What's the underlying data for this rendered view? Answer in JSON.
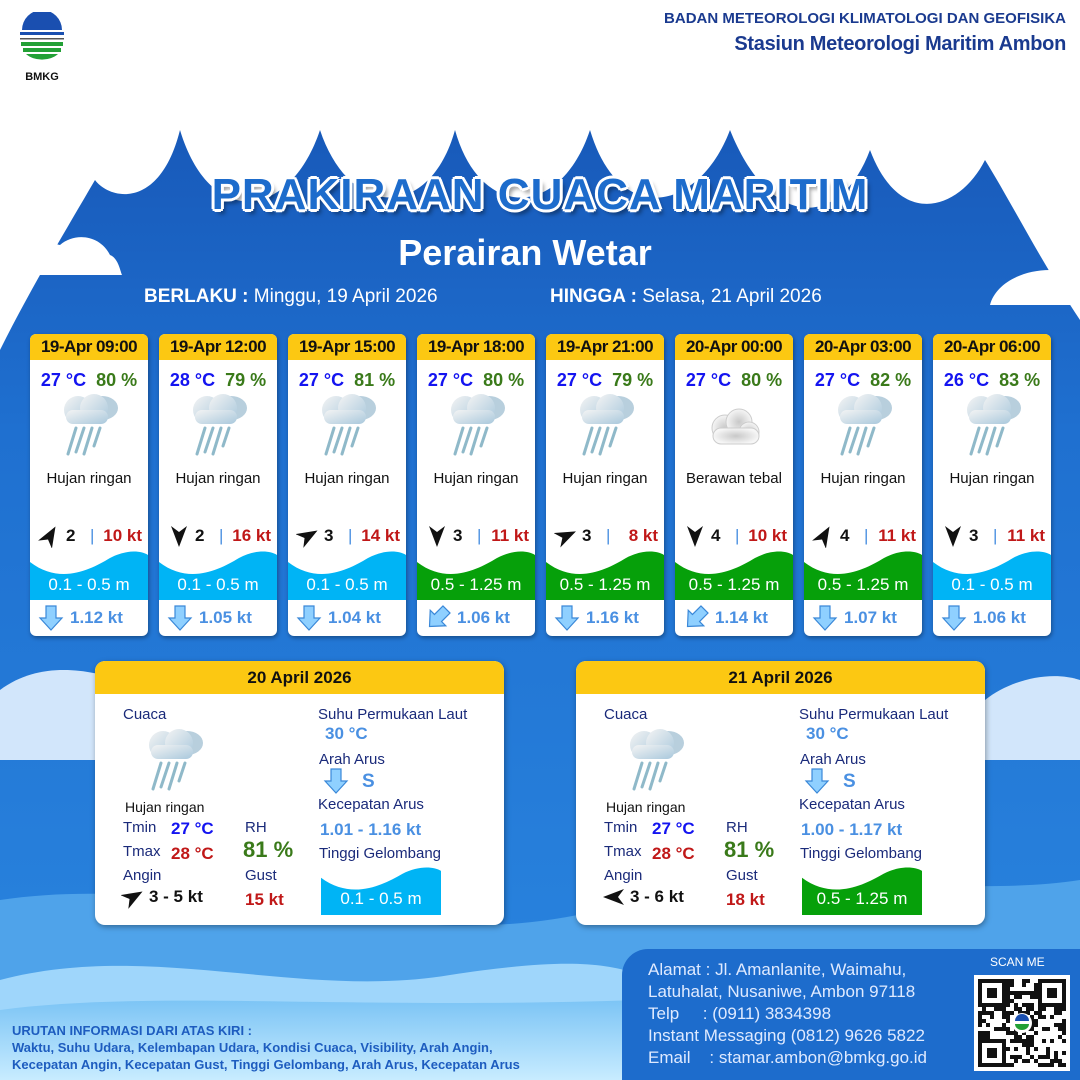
{
  "header": {
    "logo_text": "BMKG",
    "agency": "BADAN METEOROLOGI KLIMATOLOGI DAN GEOFISIKA",
    "station": "Stasiun Meteorologi Maritim Ambon",
    "title": "PRAKIRAAN CUACA MARITIM",
    "area": "Perairan Wetar",
    "valid_from_label": "BERLAKU :",
    "valid_from": "Minggu, 19 April 2026",
    "valid_to_label": "HINGGA :",
    "valid_to": "Selasa, 21 April 2026"
  },
  "colors": {
    "accent_yellow": "#fcc812",
    "wave_low": "#00b4f5",
    "wave_mid": "#06a00a",
    "temp": "#1414f0",
    "rh": "#3a7a1a",
    "gust": "#c01818"
  },
  "forecasts": [
    {
      "time": "19-Apr 09:00",
      "temp": "27 °C",
      "rh": "80 %",
      "icon": "light-rain-icon",
      "weather": "Hujan ringan",
      "wind_dir_deg": 30,
      "wind_speed": "2",
      "gust": "10 kt",
      "wave": "0.1 - 0.5 m",
      "wave_level": "low",
      "current_dir_deg": 180,
      "current_speed": "1.12 kt"
    },
    {
      "time": "19-Apr 12:00",
      "temp": "28 °C",
      "rh": "79 %",
      "icon": "light-rain-icon",
      "weather": "Hujan ringan",
      "wind_dir_deg": 180,
      "wind_speed": "2",
      "gust": "16 kt",
      "wave": "0.1 - 0.5 m",
      "wave_level": "low",
      "current_dir_deg": 180,
      "current_speed": "1.05 kt"
    },
    {
      "time": "19-Apr 15:00",
      "temp": "27 °C",
      "rh": "81 %",
      "icon": "light-rain-icon",
      "weather": "Hujan ringan",
      "wind_dir_deg": 60,
      "wind_speed": "3",
      "gust": "14 kt",
      "wave": "0.1 - 0.5 m",
      "wave_level": "low",
      "current_dir_deg": 180,
      "current_speed": "1.04 kt"
    },
    {
      "time": "19-Apr 18:00",
      "temp": "27 °C",
      "rh": "80 %",
      "icon": "light-rain-icon",
      "weather": "Hujan ringan",
      "wind_dir_deg": 180,
      "wind_speed": "3",
      "gust": "11 kt",
      "wave": "0.5 - 1.25 m",
      "wave_level": "mid",
      "current_dir_deg": 225,
      "current_speed": "1.06 kt"
    },
    {
      "time": "19-Apr 21:00",
      "temp": "27 °C",
      "rh": "79 %",
      "icon": "light-rain-icon",
      "weather": "Hujan ringan",
      "wind_dir_deg": 65,
      "wind_speed": "3",
      "gust": "8 kt",
      "wave": "0.5 - 1.25 m",
      "wave_level": "mid",
      "current_dir_deg": 180,
      "current_speed": "1.16 kt"
    },
    {
      "time": "20-Apr 00:00",
      "temp": "27 °C",
      "rh": "80 %",
      "icon": "overcast-cloud-icon",
      "weather": "Berawan tebal",
      "wind_dir_deg": 180,
      "wind_speed": "4",
      "gust": "10 kt",
      "wave": "0.5 - 1.25 m",
      "wave_level": "mid",
      "current_dir_deg": 225,
      "current_speed": "1.14 kt"
    },
    {
      "time": "20-Apr 03:00",
      "temp": "27 °C",
      "rh": "82 %",
      "icon": "light-rain-icon",
      "weather": "Hujan ringan",
      "wind_dir_deg": 30,
      "wind_speed": "4",
      "gust": "11 kt",
      "wave": "0.5 - 1.25 m",
      "wave_level": "mid",
      "current_dir_deg": 180,
      "current_speed": "1.07 kt"
    },
    {
      "time": "20-Apr 06:00",
      "temp": "26 °C",
      "rh": "83 %",
      "icon": "light-rain-icon",
      "weather": "Hujan ringan",
      "wind_dir_deg": 180,
      "wind_speed": "3",
      "gust": "11 kt",
      "wave": "0.1 - 0.5 m",
      "wave_level": "low",
      "current_dir_deg": 180,
      "current_speed": "1.06 kt"
    }
  ],
  "labels": {
    "cuaca": "Cuaca",
    "tmin": "Tmin",
    "tmax": "Tmax",
    "angin": "Angin",
    "rh": "RH",
    "gust": "Gust",
    "sst": "Suhu Permukaan Laut",
    "arah_arus": "Arah Arus",
    "kec_arus": "Kecepatan Arus",
    "gelombang": "Tinggi Gelombang"
  },
  "daily": [
    {
      "date": "20 April 2026",
      "weather": "Hujan ringan",
      "tmin": "27 °C",
      "tmax": "28 °C",
      "rh": "81 %",
      "wind_dir_deg": 60,
      "wind": "3  - 5 kt",
      "gust": "15 kt",
      "sst": "30 °C",
      "current_dir_deg": 180,
      "current_dir": "S",
      "current_speed": "1.01  - 1.16 kt",
      "wave": "0.1 - 0.5 m",
      "wave_level": "low"
    },
    {
      "date": "21 April 2026",
      "weather": "Hujan ringan",
      "tmin": "27 °C",
      "tmax": "28 °C",
      "rh": "81 %",
      "wind_dir_deg": 270,
      "wind": "3  - 6 kt",
      "gust": "18 kt",
      "sst": "30 °C",
      "current_dir_deg": 180,
      "current_dir": "S",
      "current_speed": "1.00  - 1.17 kt",
      "wave": "0.5 - 1.25 m",
      "wave_level": "mid"
    }
  ],
  "footer": {
    "address": "Alamat : Jl. Amanlanite, Waimahu,\nLatuhalat, Nusaniwe, Ambon 97118\nTelp     : (0911) 3834398\nInstant Messaging (0812) 9626 5822\nEmail    : stamar.ambon@bmkg.go.id",
    "scan_me": "SCAN ME",
    "note_title": "URUTAN INFORMASI DARI ATAS KIRI :",
    "note_line1": "Waktu, Suhu Udara, Kelembapan Udara, Kondisi Cuaca, Visibility, Arah Angin,",
    "note_line2": "Kecepatan Angin, Kecepatan Gust, Tinggi Gelombang, Arah Arus, Kecepatan Arus"
  }
}
